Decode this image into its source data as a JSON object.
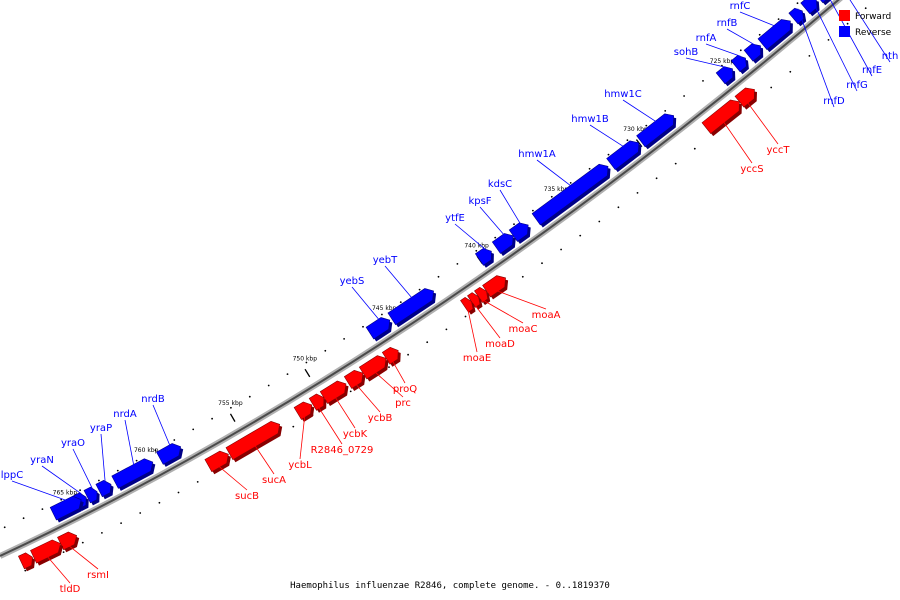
{
  "caption": "Haemophilus influenzae R2846, complete genome. - 0..1819370",
  "legend": {
    "forward_label": "Forward",
    "reverse_label": "Reverse",
    "forward_color": "#ff0000",
    "reverse_color": "#0000ff"
  },
  "tick_labels": [
    "725 kbp",
    "730 kbp",
    "735 kbp",
    "740 kbp",
    "745 kbp",
    "750 kbp",
    "755 kbp",
    "760 kbp",
    "765 kbp"
  ],
  "reverse_genes": [
    "rnfC",
    "rnfB",
    "rnfA",
    "sohB",
    "rnfD",
    "rnfG",
    "rnfE",
    "nth",
    "hmw1C",
    "hmw1B",
    "hmw1A",
    "kdsC",
    "kpsF",
    "ytfE",
    "yebT",
    "yebS",
    "nrdB",
    "nrdA",
    "yraP",
    "yraO",
    "yraN",
    "lppC"
  ],
  "forward_genes": [
    "yccT",
    "yccS",
    "moaA",
    "moaC",
    "moaD",
    "moaE",
    "proQ",
    "prc",
    "ycbB",
    "ycbK",
    "R2846_0729",
    "ycbL",
    "sucA",
    "sucB",
    "rsmI",
    "tldD"
  ]
}
